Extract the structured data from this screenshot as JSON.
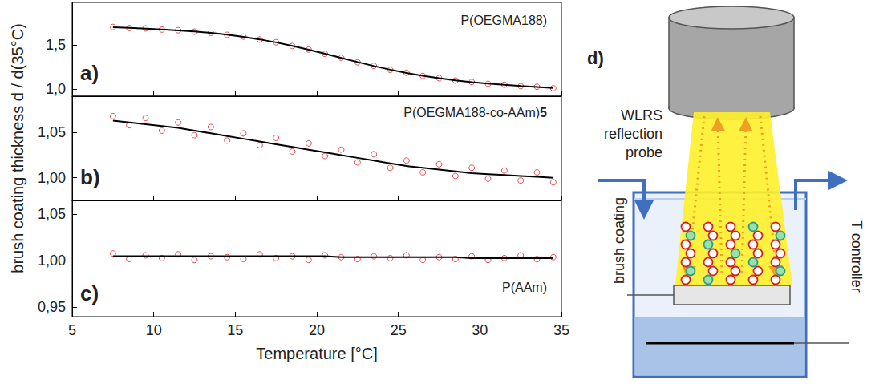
{
  "chart_data": [
    {
      "type": "scatter",
      "panel_label": "a)",
      "annotation": "P(OEGMA188)",
      "x": [
        7.5,
        8.5,
        9.5,
        10.5,
        11.5,
        12.5,
        13.5,
        14.5,
        15.5,
        16.5,
        17.5,
        18.5,
        19.5,
        20.5,
        21.5,
        22.5,
        23.5,
        24.5,
        25.5,
        26.5,
        27.5,
        28.5,
        29.5,
        30.5,
        31.5,
        32.5,
        33.5,
        34.5
      ],
      "series": [
        {
          "type": "scatter",
          "color": "#e8202a",
          "marker": "open circle",
          "values": [
            1.702,
            1.69,
            1.686,
            1.673,
            1.666,
            1.649,
            1.637,
            1.613,
            1.593,
            1.56,
            1.53,
            1.487,
            1.448,
            1.398,
            1.355,
            1.304,
            1.263,
            1.218,
            1.185,
            1.149,
            1.125,
            1.097,
            1.081,
            1.06,
            1.05,
            1.034,
            1.027,
            1.01
          ]
        },
        {
          "type": "line",
          "color": "#000000",
          "line_style": "solid",
          "values": [
            1.7,
            1.692,
            1.684,
            1.675,
            1.664,
            1.651,
            1.635,
            1.615,
            1.591,
            1.562,
            1.528,
            1.489,
            1.446,
            1.4,
            1.353,
            1.306,
            1.261,
            1.22,
            1.183,
            1.151,
            1.123,
            1.099,
            1.079,
            1.062,
            1.048,
            1.036,
            1.025,
            1.012
          ]
        }
      ],
      "xlim": [
        5,
        35
      ],
      "xticks": [
        5,
        10,
        15,
        20,
        25,
        30,
        35
      ],
      "ylim": [
        0.92,
        1.98
      ],
      "yticks": [
        {
          "value": 1.0,
          "label": "1,0"
        },
        {
          "value": 1.5,
          "label": "1,5"
        }
      ],
      "grid": false,
      "tick_labels": "y"
    },
    {
      "type": "scatter",
      "panel_label": "b)",
      "annotation": "P(OEGMA188-co-AAm)5",
      "ylabel": "brush coating thickness d / d(35°C)",
      "x": [
        7.5,
        8.5,
        9.5,
        10.5,
        11.5,
        12.5,
        13.5,
        14.5,
        15.5,
        16.5,
        17.5,
        18.5,
        19.5,
        20.5,
        21.5,
        22.5,
        23.5,
        24.5,
        25.5,
        26.5,
        27.5,
        28.5,
        29.5,
        30.5,
        31.5,
        32.5,
        33.5,
        34.5
      ],
      "series": [
        {
          "type": "scatter",
          "color": "#e8202a",
          "marker": "open circle",
          "values": [
            1.068,
            1.058,
            1.066,
            1.052,
            1.061,
            1.047,
            1.056,
            1.041,
            1.049,
            1.036,
            1.044,
            1.029,
            1.038,
            1.024,
            1.031,
            1.017,
            1.026,
            1.011,
            1.019,
            1.006,
            1.015,
            1.002,
            1.011,
            0.999,
            1.008,
            0.997,
            1.006,
            0.995
          ]
        },
        {
          "type": "line",
          "color": "#000000",
          "line_style": "solid",
          "values": [
            1.063,
            1.061,
            1.059,
            1.057,
            1.055,
            1.052,
            1.049,
            1.046,
            1.043,
            1.04,
            1.037,
            1.034,
            1.031,
            1.028,
            1.025,
            1.022,
            1.019,
            1.016,
            1.013,
            1.011,
            1.009,
            1.007,
            1.005,
            1.004,
            1.003,
            1.002,
            1.001,
            1.0
          ]
        }
      ],
      "xlim": [
        5,
        35
      ],
      "xticks": [
        5,
        10,
        15,
        20,
        25,
        30,
        35
      ],
      "ylim": [
        0.975,
        1.09
      ],
      "yticks": [
        {
          "value": 1.0,
          "label": "1,00"
        },
        {
          "value": 1.05,
          "label": "1,05"
        }
      ],
      "grid": false,
      "tick_labels": "y"
    },
    {
      "type": "scatter",
      "panel_label": "c)",
      "annotation": "P(AAm)",
      "xlabel": "Temperature [°C]",
      "x": [
        7.5,
        8.5,
        9.5,
        10.5,
        11.5,
        12.5,
        13.5,
        14.5,
        15.5,
        16.5,
        17.5,
        18.5,
        19.5,
        20.5,
        21.5,
        22.5,
        23.5,
        24.5,
        25.5,
        26.5,
        27.5,
        28.5,
        29.5,
        30.5,
        31.5,
        32.5,
        33.5,
        34.5
      ],
      "series": [
        {
          "type": "scatter",
          "color": "#e8202a",
          "marker": "open circle",
          "values": [
            1.008,
            1.002,
            1.006,
            1.003,
            1.007,
            1.001,
            1.005,
            1.004,
            1.002,
            1.007,
            1.003,
            1.005,
            1.001,
            1.006,
            1.004,
            1.002,
            1.005,
            1.003,
            1.006,
            1.001,
            1.004,
            1.002,
            1.005,
            1.001,
            1.003,
            1.006,
            1.002,
            1.004
          ]
        },
        {
          "type": "line",
          "color": "#000000",
          "line_style": "solid",
          "values": [
            1.005,
            1.005,
            1.005,
            1.005,
            1.005,
            1.005,
            1.005,
            1.005,
            1.005,
            1.005,
            1.005,
            1.005,
            1.005,
            1.005,
            1.004,
            1.004,
            1.004,
            1.004,
            1.004,
            1.004,
            1.004,
            1.004,
            1.003,
            1.003,
            1.003,
            1.003,
            1.003,
            1.003
          ]
        }
      ],
      "xlim": [
        5,
        35
      ],
      "xticks": [
        5,
        10,
        15,
        20,
        25,
        30,
        35
      ],
      "ylim": [
        0.94,
        1.065
      ],
      "yticks": [
        {
          "value": 0.95,
          "label": "0,95"
        },
        {
          "value": 1.0,
          "label": "1,00"
        },
        {
          "value": 1.05,
          "label": "1,05"
        }
      ],
      "grid": false
    }
  ],
  "diagram": {
    "label": "d)",
    "probe": "WLRS reflection probe",
    "sample": "brush coating",
    "controller": "T controller"
  }
}
